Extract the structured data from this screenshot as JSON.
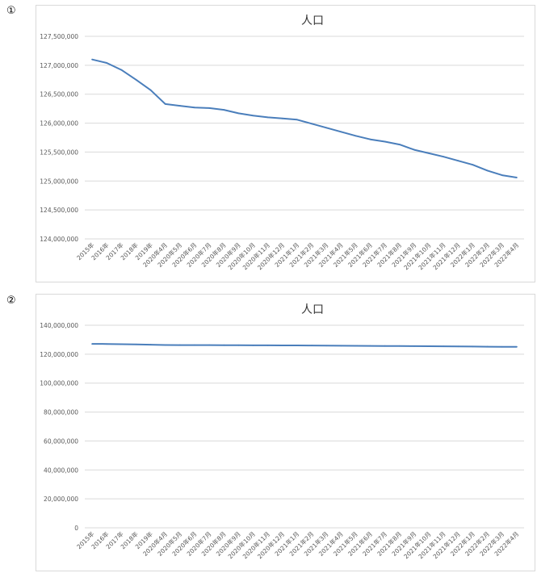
{
  "charts": [
    {
      "marker": "①"
    },
    {
      "marker": "②"
    }
  ],
  "chart_data": [
    {
      "type": "line",
      "title": "人口",
      "xlabel": "",
      "ylabel": "",
      "ylim": [
        124000000,
        127500000
      ],
      "yticks": [
        124000000,
        124500000,
        125000000,
        125500000,
        126000000,
        126500000,
        127000000,
        127500000
      ],
      "ytick_labels": [
        "124,000,000",
        "124,500,000",
        "125,000,000",
        "125,500,000",
        "126,000,000",
        "126,500,000",
        "127,000,000",
        "127,500,000"
      ],
      "grid": true,
      "legend": "none",
      "line_color": "#4a7ebb",
      "categories": [
        "2015年",
        "2016年",
        "2017年",
        "2018年",
        "2019年",
        "2020年4月",
        "2020年5月",
        "2020年6月",
        "2020年7月",
        "2020年8月",
        "2020年9月",
        "2020年10月",
        "2020年11月",
        "2020年12月",
        "2021年1月",
        "2021年2月",
        "2021年3月",
        "2021年4月",
        "2021年5月",
        "2021年6月",
        "2021年7月",
        "2021年8月",
        "2021年9月",
        "2021年10月",
        "2021年11月",
        "2021年12月",
        "2022年1月",
        "2022年2月",
        "2022年3月",
        "2022年4月"
      ],
      "series": [
        {
          "values": [
            127100000,
            127040000,
            126920000,
            126750000,
            126570000,
            126330000,
            126300000,
            126270000,
            126260000,
            126230000,
            126170000,
            126130000,
            126100000,
            126080000,
            126060000,
            125990000,
            125920000,
            125850000,
            125780000,
            125720000,
            125680000,
            125630000,
            125540000,
            125480000,
            125420000,
            125350000,
            125280000,
            125180000,
            125100000,
            125060000
          ]
        }
      ]
    },
    {
      "type": "line",
      "title": "人口",
      "xlabel": "",
      "ylabel": "",
      "ylim": [
        0,
        140000000
      ],
      "yticks": [
        0,
        20000000,
        40000000,
        60000000,
        80000000,
        100000000,
        120000000,
        140000000
      ],
      "ytick_labels": [
        "0",
        "20,000,000",
        "40,000,000",
        "60,000,000",
        "80,000,000",
        "100,000,000",
        "120,000,000",
        "140,000,000"
      ],
      "grid": true,
      "legend": "none",
      "line_color": "#4a7ebb",
      "categories": [
        "2015年",
        "2016年",
        "2017年",
        "2018年",
        "2019年",
        "2020年4月",
        "2020年5月",
        "2020年6月",
        "2020年7月",
        "2020年8月",
        "2020年9月",
        "2020年10月",
        "2020年11月",
        "2020年12月",
        "2021年1月",
        "2021年2月",
        "2021年3月",
        "2021年4月",
        "2021年5月",
        "2021年6月",
        "2021年7月",
        "2021年8月",
        "2021年9月",
        "2021年10月",
        "2021年11月",
        "2021年12月",
        "2022年1月",
        "2022年2月",
        "2022年3月",
        "2022年4月"
      ],
      "series": [
        {
          "values": [
            127100000,
            127040000,
            126920000,
            126750000,
            126570000,
            126330000,
            126300000,
            126270000,
            126260000,
            126230000,
            126170000,
            126130000,
            126100000,
            126080000,
            126060000,
            125990000,
            125920000,
            125850000,
            125780000,
            125720000,
            125680000,
            125630000,
            125540000,
            125480000,
            125420000,
            125350000,
            125280000,
            125180000,
            125100000,
            125060000
          ]
        }
      ]
    }
  ]
}
